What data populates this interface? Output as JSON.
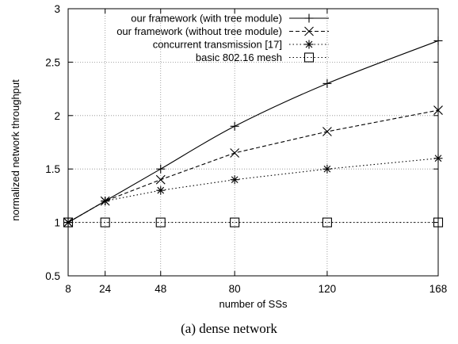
{
  "caption": "(a) dense network",
  "chart_data": {
    "type": "line",
    "title": "",
    "xlabel": "number of SSs",
    "ylabel": "normalized network throughput",
    "x": [
      8,
      24,
      48,
      80,
      120,
      168
    ],
    "x_tick_labels": [
      "8",
      "24",
      "48",
      "80",
      "120",
      "168"
    ],
    "xlim": [
      8,
      168
    ],
    "ylim": [
      0.5,
      3
    ],
    "y_ticks": [
      0.5,
      1,
      1.5,
      2,
      2.5,
      3
    ],
    "y_tick_labels": [
      "0.5",
      "1",
      "1.5",
      "2",
      "2.5",
      "3"
    ],
    "grid": true,
    "legend_position": "top-right",
    "series": [
      {
        "name": "our framework (with tree module)",
        "marker": "plus",
        "dash": "solid",
        "values": [
          1.0,
          1.2,
          1.5,
          1.9,
          2.3,
          2.7
        ],
        "smooth": true
      },
      {
        "name": "our framework (without tree module)",
        "marker": "x",
        "dash": "dash",
        "values": [
          1.0,
          1.2,
          1.4,
          1.65,
          1.85,
          2.05
        ],
        "smooth": false
      },
      {
        "name": "concurrent transmission [17]",
        "marker": "star",
        "dash": "dot",
        "values": [
          1.0,
          1.2,
          1.3,
          1.4,
          1.5,
          1.6
        ],
        "smooth": false
      },
      {
        "name": "basic 802.16 mesh",
        "marker": "square",
        "dash": "dot",
        "values": [
          1.0,
          1.0,
          1.0,
          1.0,
          1.0,
          1.0
        ],
        "smooth": false
      }
    ]
  }
}
